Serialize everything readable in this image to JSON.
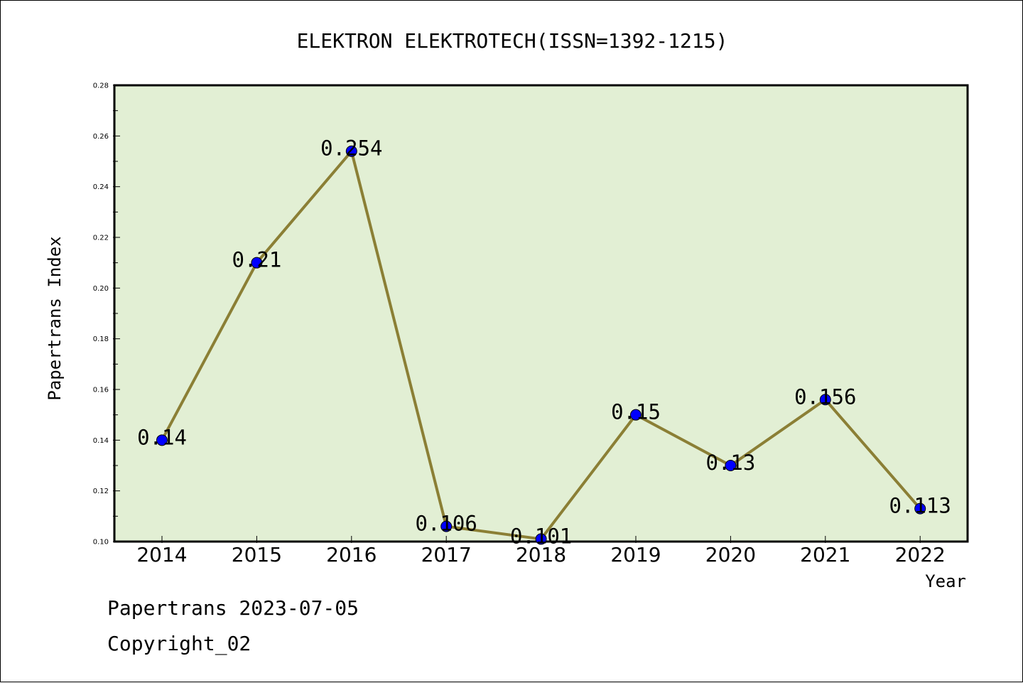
{
  "chart_data": {
    "type": "line",
    "title": "ELEKTRON ELEKTROTECH(ISSN=1392-1215)",
    "xlabel": "Year",
    "ylabel": "Papertrans Index",
    "categories": [
      "2014",
      "2015",
      "2016",
      "2017",
      "2018",
      "2019",
      "2020",
      "2021",
      "2022"
    ],
    "values": [
      0.14,
      0.21,
      0.254,
      0.106,
      0.101,
      0.15,
      0.13,
      0.156,
      0.113
    ],
    "data_labels": [
      "0.14",
      "0.21",
      "0.254",
      "0.106",
      "0.101",
      "0.15",
      "0.13",
      "0.156",
      "0.113"
    ],
    "ylim": [
      0.1,
      0.28
    ],
    "yticks": [
      "0.10",
      "0.12",
      "0.14",
      "0.16",
      "0.18",
      "0.20",
      "0.22",
      "0.24",
      "0.26",
      "0.28"
    ],
    "grid": false,
    "legend": "none",
    "colors": {
      "plot_background": "#e2efd4",
      "line": "#8b7f35",
      "marker": "#0000ff",
      "axis": "#000000"
    }
  },
  "footer": {
    "source_line": "Papertrans 2023-07-05",
    "copyright_line": "Copyright_02"
  }
}
